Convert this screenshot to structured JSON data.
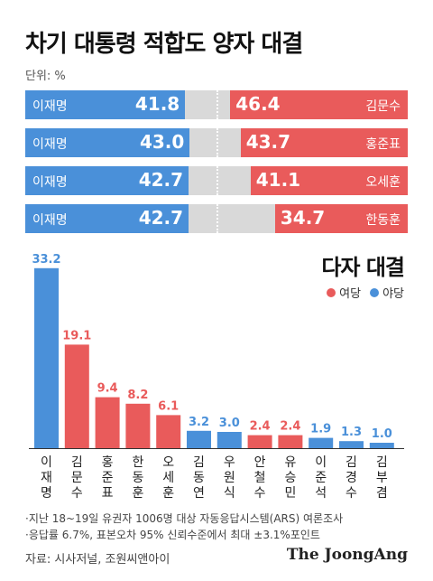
{
  "title": "차기 대통령 적합도 양자 대결",
  "unit": "단위: %",
  "colors": {
    "ruling": "#e95b5b",
    "opposition": "#4a90d9",
    "gap": "#d9d9d9"
  },
  "matchups": [
    {
      "left_name": "이재명",
      "left_value": "41.8",
      "right_value": "46.4",
      "right_name": "김문수"
    },
    {
      "left_name": "이재명",
      "left_value": "43.0",
      "right_value": "43.7",
      "right_name": "홍준표"
    },
    {
      "left_name": "이재명",
      "left_value": "42.7",
      "right_value": "41.1",
      "right_name": "오세훈"
    },
    {
      "left_name": "이재명",
      "left_value": "42.7",
      "right_value": "34.7",
      "right_name": "한동훈"
    }
  ],
  "multi_title": "다자 대결",
  "legend": [
    {
      "label": "여당",
      "party": "ruling"
    },
    {
      "label": "야당",
      "party": "opposition"
    }
  ],
  "chart_data": [
    {
      "type": "bar",
      "title": "차기 대통령 적합도 양자 대결",
      "categories": [
        "김문수",
        "홍준표",
        "오세훈",
        "한동훈"
      ],
      "series": [
        {
          "name": "이재명",
          "values": [
            41.8,
            43.0,
            42.7,
            42.7
          ]
        },
        {
          "values": [
            46.4,
            43.7,
            41.1,
            34.7
          ]
        }
      ]
    },
    {
      "type": "bar",
      "title": "다자 대결",
      "categories": [
        "이재명",
        "김문수",
        "홍준표",
        "한동훈",
        "오세훈",
        "김동연",
        "우원식",
        "안철수",
        "유승민",
        "이준석",
        "김경수",
        "김부겸"
      ],
      "values": [
        33.2,
        19.1,
        9.4,
        8.2,
        6.1,
        3.2,
        3.0,
        2.4,
        2.4,
        1.9,
        1.3,
        1.0
      ],
      "labels": [
        "33.2",
        "19.1",
        "9.4",
        "8.2",
        "6.1",
        "3.2",
        "3.0",
        "2.4",
        "2.4",
        "1.9",
        "1.3",
        "1.0"
      ],
      "party": [
        "opposition",
        "ruling",
        "ruling",
        "ruling",
        "ruling",
        "opposition",
        "opposition",
        "ruling",
        "ruling",
        "opposition",
        "opposition",
        "opposition"
      ],
      "ylim": [
        0,
        34
      ]
    }
  ],
  "footnotes": [
    "·지난 18~19일 유권자 1006명 대상 자동응답시스템(ARS) 여론조사",
    "·응답률 6.7%, 표본오차 95% 신뢰수준에서 최대 ±3.1%포인트"
  ],
  "source": "자료: 시사저널, 조원씨앤아이",
  "brand": "The JoongAng"
}
